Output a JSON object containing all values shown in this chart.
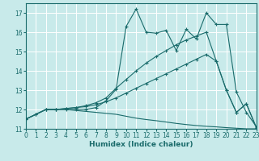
{
  "background_color": "#c8eaea",
  "grid_color": "#ffffff",
  "line_color": "#1a6b6b",
  "xlabel": "Humidex (Indice chaleur)",
  "xlim": [
    0,
    23
  ],
  "ylim": [
    11,
    17.5
  ],
  "yticks": [
    11,
    12,
    13,
    14,
    15,
    16,
    17
  ],
  "xticks": [
    0,
    1,
    2,
    3,
    4,
    5,
    6,
    7,
    8,
    9,
    10,
    11,
    12,
    13,
    14,
    15,
    16,
    17,
    18,
    19,
    20,
    21,
    22,
    23
  ],
  "line1_x": [
    0,
    1,
    2,
    3,
    4,
    5,
    6,
    7,
    8,
    9,
    10,
    11,
    12,
    13,
    14,
    15,
    16,
    17,
    18,
    19,
    20,
    21,
    22,
    23
  ],
  "line1_y": [
    11.5,
    11.75,
    12.0,
    12.0,
    12.0,
    11.95,
    11.9,
    11.85,
    11.8,
    11.75,
    11.65,
    11.55,
    11.48,
    11.42,
    11.35,
    11.28,
    11.22,
    11.17,
    11.13,
    11.1,
    11.06,
    11.03,
    11.0,
    11.0
  ],
  "line2_x": [
    0,
    1,
    2,
    3,
    4,
    5,
    6,
    7,
    8,
    9,
    10,
    11,
    12,
    13,
    14,
    15,
    16,
    17,
    18,
    19,
    20,
    21,
    22,
    23
  ],
  "line2_y": [
    11.5,
    11.75,
    12.0,
    12.0,
    12.05,
    12.1,
    12.15,
    12.25,
    12.4,
    12.6,
    12.85,
    13.1,
    13.35,
    13.6,
    13.85,
    14.1,
    14.35,
    14.6,
    14.85,
    14.5,
    13.0,
    11.85,
    12.3,
    11.05
  ],
  "line3_x": [
    0,
    1,
    2,
    3,
    4,
    5,
    6,
    7,
    8,
    9,
    10,
    11,
    12,
    13,
    14,
    15,
    16,
    17,
    18,
    19,
    20,
    21,
    22,
    23
  ],
  "line3_y": [
    11.5,
    11.75,
    12.0,
    12.0,
    12.05,
    12.1,
    12.2,
    12.35,
    12.6,
    13.1,
    13.55,
    14.0,
    14.4,
    14.75,
    15.05,
    15.35,
    15.6,
    15.8,
    16.0,
    14.5,
    13.0,
    11.85,
    12.3,
    11.05
  ],
  "line4_x": [
    0,
    2,
    3,
    4,
    5,
    6,
    7,
    8,
    9,
    10,
    11,
    12,
    13,
    14,
    15,
    16,
    17,
    18,
    19,
    20,
    21,
    22,
    23
  ],
  "line4_y": [
    11.5,
    12.0,
    12.0,
    12.0,
    12.0,
    12.0,
    12.1,
    12.45,
    13.05,
    16.3,
    17.2,
    16.0,
    15.95,
    16.1,
    15.05,
    16.15,
    15.65,
    17.0,
    16.4,
    16.4,
    12.9,
    11.85,
    11.1
  ]
}
